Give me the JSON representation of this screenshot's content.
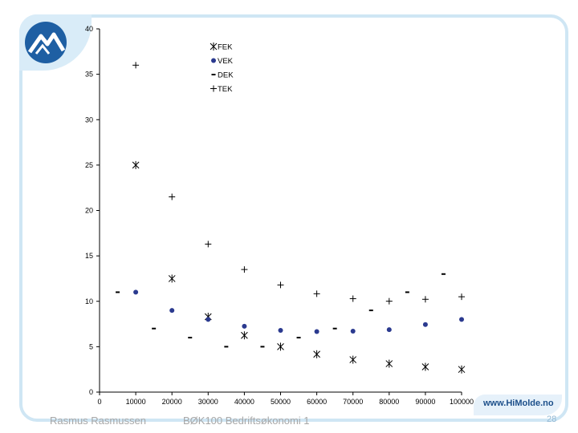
{
  "slide": {
    "author": "Rasmus Rasmussen",
    "course": "BØK100 Bedriftsøkonomi 1",
    "brand": "www.HiMolde.no",
    "page": "28"
  },
  "colors": {
    "frame": "#cfe6f4",
    "logo": "#1e5fa3",
    "vek_marker": "#2b3a8f",
    "text": "#000000"
  },
  "chart_data": {
    "type": "scatter",
    "title": "",
    "xlabel": "",
    "ylabel": "",
    "xlim": [
      0,
      100000
    ],
    "ylim": [
      0,
      40
    ],
    "x_ticks": [
      "0",
      "10000",
      "20000",
      "30000",
      "40000",
      "50000",
      "60000",
      "70000",
      "80000",
      "90000",
      "100000"
    ],
    "y_ticks": [
      "0",
      "5",
      "10",
      "15",
      "20",
      "25",
      "30",
      "35",
      "40"
    ],
    "grid": false,
    "legend_position": "top-center",
    "series": [
      {
        "name": "FEK",
        "marker": "asterisk",
        "points": [
          [
            10000,
            25
          ],
          [
            20000,
            12.5
          ],
          [
            30000,
            8.3
          ],
          [
            40000,
            6.25
          ],
          [
            50000,
            5
          ],
          [
            60000,
            4.17
          ],
          [
            70000,
            3.57
          ],
          [
            80000,
            3.13
          ],
          [
            90000,
            2.78
          ],
          [
            100000,
            2.5
          ]
        ]
      },
      {
        "name": "VEK",
        "marker": "dot",
        "points": [
          [
            10000,
            11
          ],
          [
            20000,
            9
          ],
          [
            30000,
            8
          ],
          [
            40000,
            7.25
          ],
          [
            50000,
            6.8
          ],
          [
            60000,
            6.67
          ],
          [
            70000,
            6.71
          ],
          [
            80000,
            6.88
          ],
          [
            90000,
            7.44
          ],
          [
            100000,
            8
          ]
        ]
      },
      {
        "name": "DEK",
        "marker": "dash",
        "points": [
          [
            5000,
            11
          ],
          [
            15000,
            7
          ],
          [
            25000,
            6
          ],
          [
            35000,
            5
          ],
          [
            45000,
            5
          ],
          [
            55000,
            6
          ],
          [
            65000,
            7
          ],
          [
            75000,
            9
          ],
          [
            85000,
            11
          ],
          [
            95000,
            13
          ]
        ]
      },
      {
        "name": "TEK",
        "marker": "plus",
        "points": [
          [
            10000,
            36
          ],
          [
            20000,
            21.5
          ],
          [
            30000,
            16.3
          ],
          [
            40000,
            13.5
          ],
          [
            50000,
            11.8
          ],
          [
            60000,
            10.83
          ],
          [
            70000,
            10.29
          ],
          [
            80000,
            10.01
          ],
          [
            90000,
            10.22
          ],
          [
            100000,
            10.5
          ]
        ]
      }
    ]
  }
}
